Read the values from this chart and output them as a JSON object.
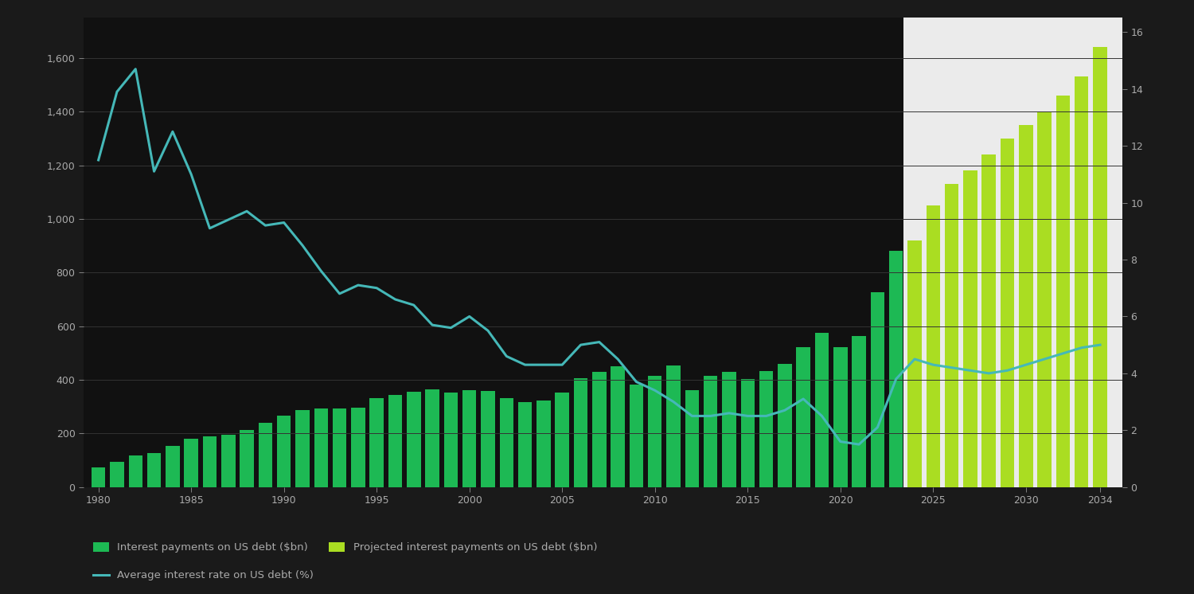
{
  "bg_color": "#1a1a1a",
  "plot_bg_color": "#111111",
  "future_bg_color": "#ebebeb",
  "bar_color_hist": "#1db954",
  "bar_color_proj": "#aadd22",
  "line_color": "#45b8b8",
  "years_hist": [
    1980,
    1981,
    1982,
    1983,
    1984,
    1985,
    1986,
    1987,
    1988,
    1989,
    1990,
    1991,
    1992,
    1993,
    1994,
    1995,
    1996,
    1997,
    1998,
    1999,
    2000,
    2001,
    2002,
    2003,
    2004,
    2005,
    2006,
    2007,
    2008,
    2009,
    2010,
    2011,
    2012,
    2013,
    2014,
    2015,
    2016,
    2017,
    2018,
    2019,
    2020,
    2021,
    2022,
    2023
  ],
  "bars_hist": [
    74,
    95,
    118,
    128,
    153,
    179,
    190,
    195,
    214,
    240,
    265,
    286,
    292,
    292,
    296,
    332,
    344,
    356,
    364,
    353,
    362,
    359,
    333,
    318,
    322,
    352,
    406,
    430,
    451,
    383,
    414,
    454,
    360,
    415,
    430,
    402,
    432,
    458,
    523,
    575,
    522,
    562,
    726,
    880
  ],
  "years_proj": [
    2024,
    2025,
    2026,
    2027,
    2028,
    2029,
    2030,
    2031,
    2032,
    2033,
    2034
  ],
  "bars_proj": [
    920,
    1050,
    1130,
    1180,
    1240,
    1300,
    1350,
    1400,
    1460,
    1530,
    1640
  ],
  "line_years": [
    1980,
    1981,
    1982,
    1983,
    1984,
    1985,
    1986,
    1987,
    1988,
    1989,
    1990,
    1991,
    1992,
    1993,
    1994,
    1995,
    1996,
    1997,
    1998,
    1999,
    2000,
    2001,
    2002,
    2003,
    2004,
    2005,
    2006,
    2007,
    2008,
    2009,
    2010,
    2011,
    2012,
    2013,
    2014,
    2015,
    2016,
    2017,
    2018,
    2019,
    2020,
    2021,
    2022,
    2023,
    2024,
    2025,
    2026,
    2027,
    2028,
    2029,
    2030,
    2031,
    2032,
    2033,
    2034
  ],
  "line_vals": [
    11.5,
    13.9,
    14.7,
    11.1,
    12.5,
    11.0,
    9.1,
    9.4,
    9.7,
    9.2,
    9.3,
    8.5,
    7.6,
    6.8,
    7.1,
    7.0,
    6.6,
    6.4,
    5.7,
    5.6,
    6.0,
    5.5,
    4.6,
    4.3,
    4.3,
    4.3,
    5.0,
    5.1,
    4.5,
    3.7,
    3.4,
    3.0,
    2.5,
    2.5,
    2.6,
    2.5,
    2.5,
    2.7,
    3.1,
    2.5,
    1.6,
    1.5,
    2.1,
    3.8,
    4.5,
    4.3,
    4.2,
    4.1,
    4.0,
    4.1,
    4.3,
    4.5,
    4.7,
    4.9,
    5.0
  ],
  "ylim_left": [
    0,
    1750
  ],
  "ylim_right": [
    0,
    16.5
  ],
  "yticks_left": [
    0,
    200,
    400,
    600,
    800,
    1000,
    1200,
    1400,
    1600
  ],
  "yticks_left_labels": [
    "0",
    "200",
    "400",
    "600",
    "800",
    "1,000",
    "1,200",
    "1,400",
    "1,600"
  ],
  "yticks_right": [
    0,
    2,
    4,
    6,
    8,
    10,
    12,
    14,
    16
  ],
  "yticks_right_labels": [
    "0",
    "2",
    "4",
    "6",
    "8",
    "10",
    "12",
    "14",
    "16"
  ],
  "xlim": [
    1979.2,
    2035.2
  ],
  "xtick_years": [
    1980,
    1985,
    1990,
    1995,
    2000,
    2005,
    2010,
    2015,
    2020,
    2025,
    2030,
    2034
  ],
  "future_start": 2023.4,
  "legend_hist_label": "Interest payments on US debt ($bn)",
  "legend_proj_label": "Projected interest payments on US debt ($bn)",
  "legend_line_label": "Average interest rate on US debt (%)",
  "text_color": "#aaaaaa",
  "grid_color": "#333333",
  "spine_color": "#333333",
  "bar_width": 0.75
}
